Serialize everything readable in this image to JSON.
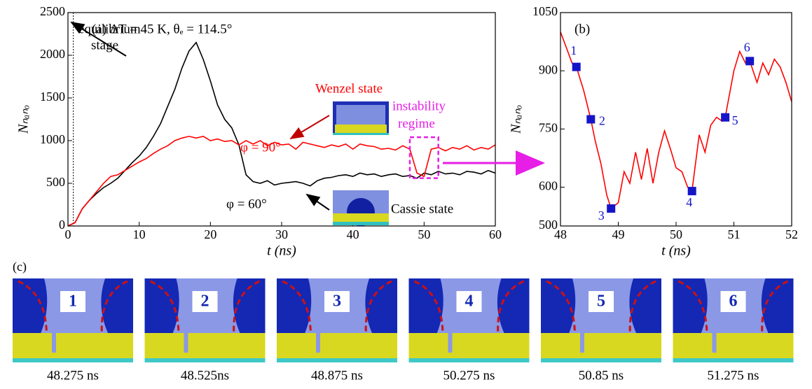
{
  "chart_data": [
    {
      "type": "line",
      "title": "(a) ΔT = 45 K, θₑ = 114.5°",
      "x_label": "t (ns)",
      "y_label": "Nₙₐₙₒ",
      "xlim": [
        0,
        60
      ],
      "xticks": [
        0,
        10,
        20,
        30,
        40,
        50,
        60
      ],
      "ylim": [
        0,
        2500
      ],
      "yticks": [
        0,
        500,
        1000,
        1500,
        2000,
        2500
      ],
      "vlines": [
        0.75
      ],
      "highlight_box": {
        "color": "#e61ee6",
        "xlim": [
          48,
          52
        ],
        "ylim": [
          560,
          1040
        ]
      },
      "annotations": [
        "equilibrium",
        "stage",
        "Wenzel state",
        "instability",
        "regime",
        "Cassie state"
      ],
      "x": [
        0,
        1,
        2,
        3,
        4,
        5,
        6,
        7,
        8,
        9,
        10,
        11,
        12,
        13,
        14,
        15,
        16,
        17,
        18,
        19,
        20,
        21,
        22,
        23,
        24,
        25,
        26,
        27,
        28,
        29,
        30,
        31,
        32,
        33,
        34,
        35,
        36,
        37,
        38,
        39,
        40,
        41,
        42,
        43,
        44,
        45,
        46,
        47,
        48,
        49,
        50,
        51,
        52,
        53,
        54,
        55,
        56,
        57,
        58,
        59,
        60
      ],
      "series": [
        {
          "name": "φ = 60°",
          "color": "#000000",
          "values": [
            0,
            40,
            200,
            300,
            380,
            450,
            500,
            560,
            650,
            740,
            820,
            920,
            1050,
            1200,
            1400,
            1600,
            1850,
            2050,
            2150,
            1950,
            1700,
            1420,
            1250,
            1150,
            950,
            600,
            520,
            500,
            530,
            480,
            500,
            510,
            520,
            500,
            470,
            530,
            560,
            570,
            590,
            600,
            580,
            620,
            600,
            610,
            580,
            600,
            610,
            580,
            590,
            560,
            620,
            600,
            640,
            610,
            620,
            600,
            640,
            630,
            610,
            650,
            620
          ]
        },
        {
          "name": "φ = 90°",
          "color": "#ff0000",
          "values": [
            0,
            40,
            200,
            300,
            400,
            500,
            580,
            600,
            650,
            700,
            750,
            790,
            850,
            900,
            940,
            1000,
            1030,
            1050,
            1030,
            1050,
            1000,
            1020,
            990,
            1000,
            950,
            1000,
            960,
            1000,
            940,
            980,
            950,
            960,
            900,
            980,
            960,
            940,
            920,
            950,
            930,
            960,
            900,
            960,
            940,
            930,
            900,
            910,
            890,
            940,
            900,
            620,
            580,
            900,
            920,
            880,
            920,
            900,
            940,
            890,
            920,
            900,
            950
          ]
        }
      ]
    },
    {
      "type": "line",
      "title": "(b)",
      "x_label": "t (ns)",
      "y_label": "Nₙₐₙₒ",
      "xlim": [
        48,
        52
      ],
      "xticks": [
        48,
        49,
        50,
        51,
        52
      ],
      "ylim": [
        500,
        1050
      ],
      "yticks": [
        500,
        600,
        750,
        900,
        1050
      ],
      "x": [
        48,
        48.1,
        48.2,
        48.275,
        48.4,
        48.525,
        48.6,
        48.7,
        48.8,
        48.875,
        49,
        49.1,
        49.2,
        49.3,
        49.4,
        49.5,
        49.6,
        49.7,
        49.8,
        49.9,
        50,
        50.1,
        50.2,
        50.275,
        50.4,
        50.5,
        50.6,
        50.7,
        50.8,
        50.85,
        51,
        51.1,
        51.2,
        51.275,
        51.4,
        51.5,
        51.6,
        51.7,
        51.8,
        51.9,
        52
      ],
      "series": [
        {
          "color": "#ff0000",
          "values": [
            1000,
            960,
            920,
            910,
            850,
            775,
            720,
            660,
            580,
            545,
            560,
            640,
            610,
            690,
            620,
            700,
            610,
            690,
            745,
            700,
            650,
            640,
            600,
            590,
            735,
            690,
            760,
            780,
            770,
            780,
            900,
            950,
            920,
            925,
            870,
            920,
            890,
            930,
            910,
            870,
            820
          ]
        }
      ],
      "markers": {
        "color": "#1515c8",
        "labels": [
          "1",
          "2",
          "3",
          "4",
          "5",
          "6"
        ],
        "x": [
          48.275,
          48.525,
          48.875,
          50.275,
          50.85,
          51.275
        ],
        "values": [
          910,
          775,
          545,
          590,
          780,
          925
        ]
      }
    }
  ],
  "panel_c": {
    "label": "(c)",
    "snapshots": [
      {
        "number": "1",
        "time": "48.275 ns"
      },
      {
        "number": "2",
        "time": "48.525ns"
      },
      {
        "number": "3",
        "time": "48.875 ns"
      },
      {
        "number": "4",
        "time": "50.275 ns"
      },
      {
        "number": "5",
        "time": "50.85 ns"
      },
      {
        "number": "6",
        "time": "51.275 ns"
      }
    ]
  }
}
